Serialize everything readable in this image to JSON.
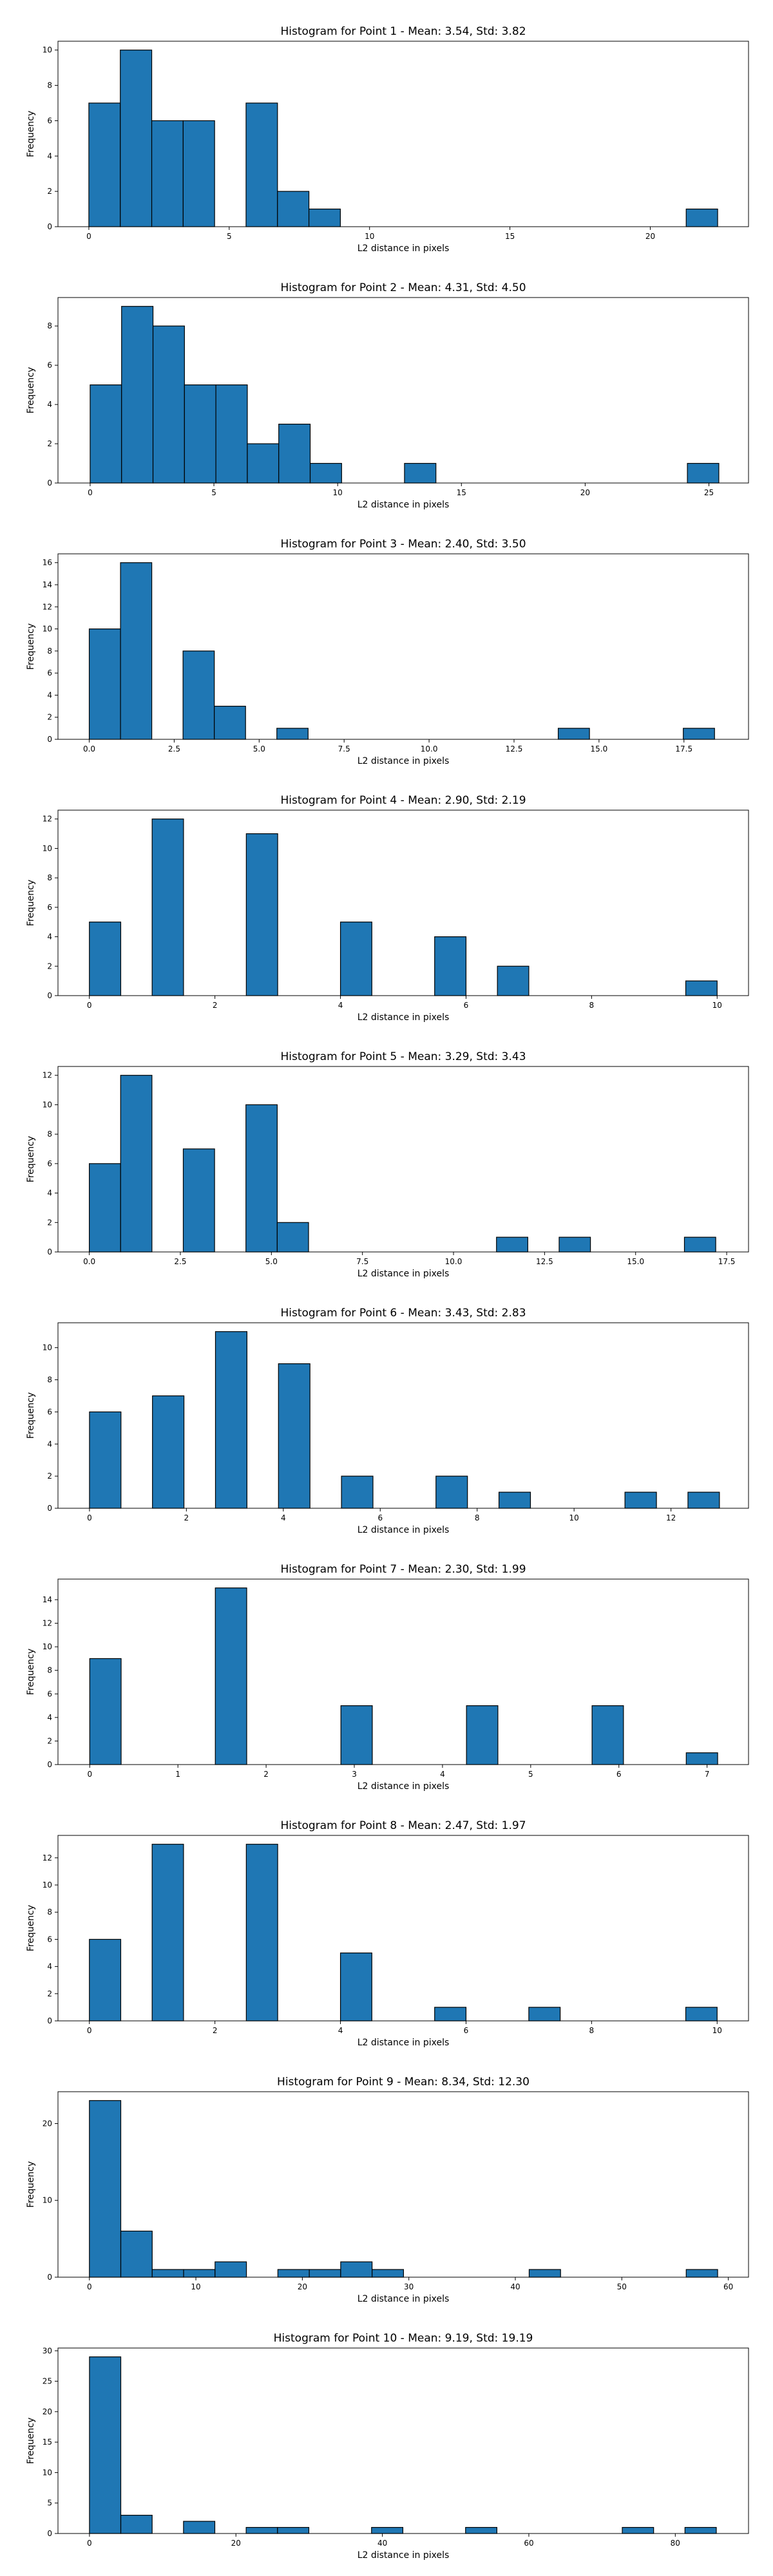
{
  "style": {
    "bar_color": "#1f77b4",
    "edge_color": "#000000",
    "background": "#ffffff"
  },
  "chart_data": [
    {
      "type": "bar",
      "title": "Histogram for Point 1 - Mean: 3.54, Std: 3.82",
      "xlabel": "L2 distance in pixels",
      "ylabel": "Frequency",
      "xlim": [
        -1.1,
        23.5
      ],
      "ylim": [
        0,
        10.5
      ],
      "xticks": [
        0,
        5,
        10,
        15,
        20
      ],
      "yticks": [
        0,
        2,
        4,
        6,
        8,
        10
      ],
      "bin_edges": [
        0,
        1.12,
        2.24,
        3.36,
        4.48,
        5.6,
        6.72,
        7.84,
        8.96,
        10.08,
        11.2,
        12.32,
        13.44,
        14.56,
        15.68,
        16.8,
        17.92,
        19.04,
        20.16,
        21.28,
        22.4
      ],
      "values": [
        7,
        10,
        6,
        6,
        0,
        7,
        2,
        1,
        0,
        0,
        0,
        0,
        0,
        0,
        0,
        0,
        0,
        0,
        0,
        1
      ],
      "grid": false,
      "legend": "none"
    },
    {
      "type": "bar",
      "title": "Histogram for Point 2 - Mean: 4.31, Std: 4.50",
      "xlabel": "L2 distance in pixels",
      "ylabel": "Frequency",
      "xlim": [
        -1.3,
        26.6
      ],
      "ylim": [
        0,
        9.45
      ],
      "xticks": [
        0,
        5,
        10,
        15,
        20,
        25
      ],
      "yticks": [
        0,
        2,
        4,
        6,
        8
      ],
      "bin_edges": [
        0,
        1.27,
        2.54,
        3.81,
        5.08,
        6.35,
        7.62,
        8.89,
        10.16,
        11.43,
        12.7,
        13.97,
        15.24,
        16.51,
        17.78,
        19.05,
        20.32,
        21.59,
        22.86,
        24.13,
        25.4
      ],
      "values": [
        5,
        9,
        8,
        5,
        5,
        2,
        3,
        1,
        0,
        0,
        1,
        0,
        0,
        0,
        0,
        0,
        0,
        0,
        0,
        1
      ],
      "grid": false,
      "legend": "none"
    },
    {
      "type": "bar",
      "title": "Histogram for Point 3 - Mean: 2.40, Std: 3.50",
      "xlabel": "L2 distance in pixels",
      "ylabel": "Frequency",
      "xlim": [
        -0.92,
        19.4
      ],
      "ylim": [
        0,
        16.8
      ],
      "xticks": [
        0.0,
        2.5,
        5.0,
        7.5,
        10.0,
        12.5,
        15.0,
        17.5
      ],
      "yticks": [
        0,
        2,
        4,
        6,
        8,
        10,
        12,
        14,
        16
      ],
      "bin_edges": [
        0,
        0.92,
        1.84,
        2.76,
        3.68,
        4.6,
        5.52,
        6.44,
        7.36,
        8.28,
        9.2,
        10.12,
        11.04,
        11.96,
        12.88,
        13.8,
        14.72,
        15.64,
        16.56,
        17.48,
        18.4
      ],
      "values": [
        10,
        16,
        0,
        8,
        3,
        0,
        1,
        0,
        0,
        0,
        0,
        0,
        0,
        0,
        0,
        1,
        0,
        0,
        0,
        1
      ],
      "grid": false,
      "legend": "none"
    },
    {
      "type": "bar",
      "title": "Histogram for Point 4 - Mean: 2.90, Std: 2.19",
      "xlabel": "L2 distance in pixels",
      "ylabel": "Frequency",
      "xlim": [
        -0.5,
        10.5
      ],
      "ylim": [
        0,
        12.6
      ],
      "xticks": [
        0,
        2,
        4,
        6,
        8,
        10
      ],
      "yticks": [
        0,
        2,
        4,
        6,
        8,
        10,
        12
      ],
      "bin_edges": [
        0,
        0.5,
        1,
        1.5,
        2,
        2.5,
        3,
        3.5,
        4,
        4.5,
        5,
        5.5,
        6,
        6.5,
        7,
        7.5,
        8,
        8.5,
        9,
        9.5,
        10
      ],
      "values": [
        5,
        0,
        12,
        0,
        0,
        11,
        0,
        0,
        5,
        0,
        0,
        4,
        0,
        2,
        0,
        0,
        0,
        0,
        0,
        1
      ],
      "grid": false,
      "legend": "none"
    },
    {
      "type": "bar",
      "title": "Histogram for Point 5 - Mean: 3.29, Std: 3.43",
      "xlabel": "L2 distance in pixels",
      "ylabel": "Frequency",
      "xlim": [
        -0.86,
        18.1
      ],
      "ylim": [
        0,
        12.6
      ],
      "xticks": [
        0.0,
        2.5,
        5.0,
        7.5,
        10.0,
        12.5,
        15.0,
        17.5
      ],
      "yticks": [
        0,
        2,
        4,
        6,
        8,
        10,
        12
      ],
      "bin_edges": [
        0,
        0.86,
        1.72,
        2.58,
        3.44,
        4.3,
        5.16,
        6.02,
        6.88,
        7.74,
        8.6,
        9.46,
        10.32,
        11.18,
        12.04,
        12.9,
        13.76,
        14.62,
        15.48,
        16.34,
        17.2
      ],
      "values": [
        6,
        12,
        0,
        7,
        0,
        10,
        2,
        0,
        0,
        0,
        0,
        0,
        0,
        1,
        0,
        1,
        0,
        0,
        0,
        1
      ],
      "grid": false,
      "legend": "none"
    },
    {
      "type": "bar",
      "title": "Histogram for Point 6 - Mean: 3.43, Std: 2.83",
      "xlabel": "L2 distance in pixels",
      "ylabel": "Frequency",
      "xlim": [
        -0.65,
        13.6
      ],
      "ylim": [
        0,
        11.55
      ],
      "xticks": [
        0,
        2,
        4,
        6,
        8,
        10,
        12
      ],
      "yticks": [
        0,
        2,
        4,
        6,
        8,
        10
      ],
      "bin_edges": [
        0,
        0.65,
        1.3,
        1.95,
        2.6,
        3.25,
        3.9,
        4.55,
        5.2,
        5.85,
        6.5,
        7.15,
        7.8,
        8.45,
        9.1,
        9.75,
        10.4,
        11.05,
        11.7,
        12.35,
        13.0
      ],
      "values": [
        6,
        0,
        7,
        0,
        11,
        0,
        9,
        0,
        2,
        0,
        0,
        2,
        0,
        1,
        0,
        0,
        0,
        1,
        0,
        1
      ],
      "grid": false,
      "legend": "none"
    },
    {
      "type": "bar",
      "title": "Histogram for Point 7 - Mean: 2.30, Std: 1.99",
      "xlabel": "L2 distance in pixels",
      "ylabel": "Frequency",
      "xlim": [
        -0.36,
        7.47
      ],
      "ylim": [
        0,
        15.75
      ],
      "xticks": [
        0,
        1,
        2,
        3,
        4,
        5,
        6,
        7
      ],
      "yticks": [
        0,
        2,
        4,
        6,
        8,
        10,
        12,
        14
      ],
      "bin_edges": [
        0,
        0.356,
        0.712,
        1.068,
        1.424,
        1.78,
        2.136,
        2.492,
        2.848,
        3.204,
        3.56,
        3.916,
        4.272,
        4.628,
        4.984,
        5.34,
        5.696,
        6.052,
        6.408,
        6.764,
        7.12
      ],
      "values": [
        9,
        0,
        0,
        0,
        15,
        0,
        0,
        0,
        5,
        0,
        0,
        0,
        5,
        0,
        0,
        0,
        5,
        0,
        0,
        1
      ],
      "grid": false,
      "legend": "none"
    },
    {
      "type": "bar",
      "title": "Histogram for Point 8 - Mean: 2.47, Std: 1.97",
      "xlabel": "L2 distance in pixels",
      "ylabel": "Frequency",
      "xlim": [
        -0.5,
        10.5
      ],
      "ylim": [
        0,
        13.65
      ],
      "xticks": [
        0,
        2,
        4,
        6,
        8,
        10
      ],
      "yticks": [
        0,
        2,
        4,
        6,
        8,
        10,
        12
      ],
      "bin_edges": [
        0,
        0.5,
        1,
        1.5,
        2,
        2.5,
        3,
        3.5,
        4,
        4.5,
        5,
        5.5,
        6,
        6.5,
        7,
        7.5,
        8,
        8.5,
        9,
        9.5,
        10
      ],
      "values": [
        6,
        0,
        13,
        0,
        0,
        13,
        0,
        0,
        5,
        0,
        0,
        1,
        0,
        0,
        1,
        0,
        0,
        0,
        0,
        1
      ],
      "grid": false,
      "legend": "none"
    },
    {
      "type": "bar",
      "title": "Histogram for Point 9 - Mean: 8.34, Std: 12.30",
      "xlabel": "L2 distance in pixels",
      "ylabel": "Frequency",
      "xlim": [
        -2.95,
        61.9
      ],
      "ylim": [
        0,
        24.15
      ],
      "xticks": [
        0,
        10,
        20,
        30,
        40,
        50,
        60
      ],
      "yticks": [
        0,
        10,
        20
      ],
      "bin_edges": [
        0,
        2.95,
        5.9,
        8.85,
        11.8,
        14.75,
        17.7,
        20.65,
        23.6,
        26.55,
        29.5,
        32.45,
        35.4,
        38.35,
        41.3,
        44.25,
        47.2,
        50.15,
        53.1,
        56.05,
        59.0
      ],
      "values": [
        23,
        6,
        1,
        1,
        2,
        0,
        1,
        1,
        2,
        1,
        0,
        0,
        0,
        0,
        1,
        0,
        0,
        0,
        0,
        1
      ],
      "grid": false,
      "legend": "none"
    },
    {
      "type": "bar",
      "title": "Histogram for Point 10 - Mean: 9.19, Std: 19.19",
      "xlabel": "L2 distance in pixels",
      "ylabel": "Frequency",
      "xlim": [
        -4.3,
        90.0
      ],
      "ylim": [
        0,
        30.45
      ],
      "xticks": [
        0,
        20,
        40,
        60,
        80
      ],
      "yticks": [
        0,
        5,
        10,
        15,
        20,
        25,
        30
      ],
      "bin_edges": [
        0,
        4.28,
        8.56,
        12.84,
        17.12,
        21.4,
        25.68,
        29.96,
        34.24,
        38.52,
        42.8,
        47.08,
        51.36,
        55.64,
        59.92,
        64.2,
        68.48,
        72.76,
        77.04,
        81.32,
        85.6
      ],
      "values": [
        29,
        3,
        0,
        2,
        0,
        1,
        1,
        0,
        0,
        1,
        0,
        0,
        1,
        0,
        0,
        0,
        0,
        1,
        0,
        1
      ],
      "grid": false,
      "legend": "none"
    }
  ]
}
